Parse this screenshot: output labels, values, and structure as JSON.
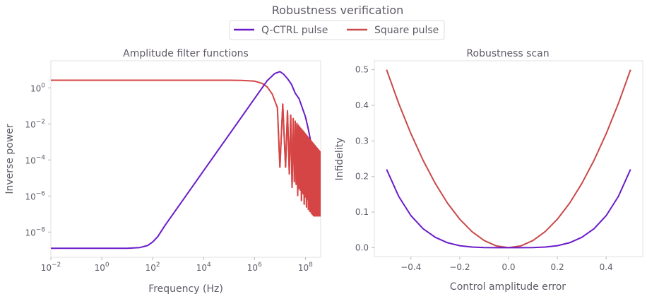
{
  "figure": {
    "title": "Robustness verification",
    "legend": [
      {
        "label": "Q-CTRL pulse",
        "color": "#6a1bc9"
      },
      {
        "label": "Square pulse",
        "color": "#c94a4a"
      }
    ]
  },
  "chart_data": [
    {
      "type": "line",
      "title": "Amplitude filter functions",
      "xlabel": "Frequency (Hz)",
      "ylabel": "Inverse power",
      "xscale": "log",
      "yscale": "log",
      "xlim_log10": [
        -2,
        8.6
      ],
      "ylim_log10": [
        -9.4,
        1.5
      ],
      "xticks": [
        {
          "exp": "-2",
          "value": -2
        },
        {
          "exp": "0",
          "value": 0
        },
        {
          "exp": "2",
          "value": 2
        },
        {
          "exp": "4",
          "value": 4
        },
        {
          "exp": "6",
          "value": 6
        },
        {
          "exp": "8",
          "value": 8
        }
      ],
      "yticks": [
        {
          "exp": "0",
          "value": 0
        },
        {
          "exp": "-2",
          "value": -2
        },
        {
          "exp": "-4",
          "value": -4
        },
        {
          "exp": "-6",
          "value": -6
        },
        {
          "exp": "-8",
          "value": -8
        }
      ],
      "tick_base": "10",
      "series": [
        {
          "name": "Q-CTRL pulse",
          "color": "#6a1bc9",
          "log10_x": [
            -2,
            1.0,
            1.5,
            1.8,
            2.0,
            2.2,
            2.5,
            3,
            4,
            5,
            6,
            6.5,
            6.8,
            7.0,
            7.15,
            7.3,
            7.45,
            7.6,
            7.75,
            7.9,
            8.0,
            8.1,
            8.2,
            8.3,
            8.4,
            8.5,
            8.6
          ],
          "log10_y": [
            -8.9,
            -8.9,
            -8.86,
            -8.75,
            -8.55,
            -8.25,
            -7.6,
            -6.6,
            -4.6,
            -2.6,
            -0.6,
            0.4,
            0.8,
            0.9,
            0.75,
            0.5,
            0.2,
            -0.3,
            -0.6,
            -1.2,
            -1.6,
            -2.2,
            -2.9,
            -3.6,
            -4.4,
            -5.2,
            -6.1
          ]
        },
        {
          "name": "Square pulse",
          "color": "#d64545",
          "log10_x": [
            -2,
            5.0,
            5.5,
            6.0,
            6.3,
            6.5,
            6.7,
            6.9,
            7.0
          ],
          "log10_y": [
            0.42,
            0.42,
            0.41,
            0.37,
            0.25,
            0.05,
            -0.35,
            -1.1,
            -4.4
          ],
          "oscillating_tail": {
            "log10_x_start": 7.0,
            "log10_x_end": 8.6,
            "envelope_peak_log10_y_start": -0.9,
            "envelope_peak_log10_y_end": -3.6,
            "dip_log10_y_min": -7.1
          }
        }
      ]
    },
    {
      "type": "line",
      "title": "Robustness scan",
      "xlabel": "Control amplitude error",
      "ylabel": "Infidelity",
      "xlim": [
        -0.55,
        0.55
      ],
      "ylim": [
        -0.025,
        0.525
      ],
      "xticks": [
        "−0.4",
        "−0.2",
        "0.0",
        "0.2",
        "0.4"
      ],
      "xtick_values": [
        -0.4,
        -0.2,
        0.0,
        0.2,
        0.4
      ],
      "yticks": [
        "0.0",
        "0.1",
        "0.2",
        "0.3",
        "0.4",
        "0.5"
      ],
      "ytick_values": [
        0.0,
        0.1,
        0.2,
        0.3,
        0.4,
        0.5
      ],
      "x": [
        -0.5,
        -0.45,
        -0.4,
        -0.35,
        -0.3,
        -0.25,
        -0.2,
        -0.15,
        -0.1,
        -0.05,
        0.0,
        0.05,
        0.1,
        0.15,
        0.2,
        0.25,
        0.3,
        0.35,
        0.4,
        0.45,
        0.5
      ],
      "series": [
        {
          "name": "Q-CTRL pulse",
          "color": "#6a1bc9",
          "values": [
            0.22,
            0.144,
            0.09,
            0.053,
            0.029,
            0.014,
            0.0056,
            0.0018,
            0.0004,
            0.0,
            0.0,
            0.0,
            0.0004,
            0.0018,
            0.0056,
            0.014,
            0.029,
            0.053,
            0.09,
            0.144,
            0.22
          ]
        },
        {
          "name": "Square pulse",
          "color": "#c94a4a",
          "values": [
            0.5,
            0.405,
            0.32,
            0.245,
            0.18,
            0.125,
            0.08,
            0.045,
            0.02,
            0.005,
            0.0,
            0.005,
            0.02,
            0.045,
            0.08,
            0.125,
            0.18,
            0.245,
            0.32,
            0.405,
            0.5
          ]
        }
      ]
    }
  ]
}
